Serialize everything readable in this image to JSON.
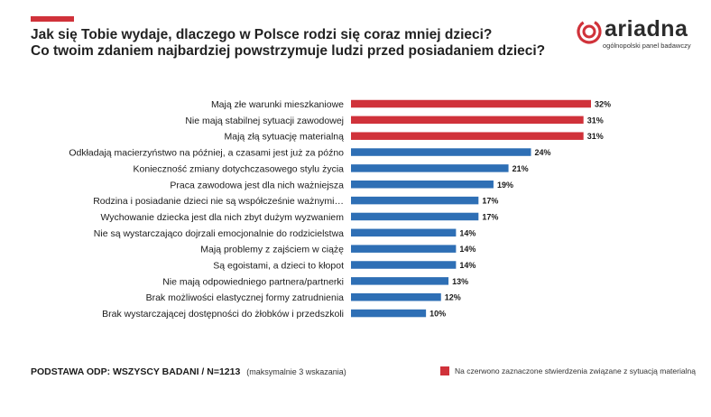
{
  "header": {
    "title_line1": "Jak się Tobie wydaje, dlaczego w Polsce rodzi się coraz mniej dzieci?",
    "title_line2": "Co twoim zdaniem najbardziej powstrzymuje ludzi przed posiadaniem dzieci?"
  },
  "logo": {
    "name": "ariadna",
    "tagline": "ogólnopolski panel badawczy"
  },
  "colors": {
    "accent": "#d0323a",
    "blue": "#2e6fb5",
    "text": "#1a1a1a"
  },
  "footer": {
    "base_label": "PODSTAWA ODP: WSZYSCY BADANI / N=1213",
    "note": "(maksymalnie 3 wskazania)"
  },
  "legend": {
    "label": "Na czerwono zaznaczone stwierdzenia związane z sytuacją materialną"
  },
  "chart_data": {
    "type": "bar",
    "orientation": "horizontal",
    "value_suffix": "%",
    "categories": [
      "Mają złe warunki mieszkaniowe",
      "Nie mają stabilnej sytuacji zawodowej",
      "Mają złą sytuację materialną",
      "Odkładają macierzyństwo na później, a czasami jest już za późno",
      "Konieczność zmiany dotychczasowego stylu życia",
      "Praca zawodowa jest dla nich ważniejsza",
      "Rodzina i posiadanie dzieci nie są współcześnie ważnymi…",
      "Wychowanie dziecka jest dla nich zbyt dużym wyzwaniem",
      "Nie są wystarczająco dojrzali emocjonalnie do rodzicielstwa",
      "Mają problemy z zajściem w ciążę",
      "Są egoistami, a dzieci to kłopot",
      "Nie mają odpowiedniego partnera/partnerki",
      "Brak możliwości elastycznej formy zatrudnienia",
      "Brak wystarczającej dostępności do żłobków i przedszkoli"
    ],
    "values": [
      32,
      31,
      31,
      24,
      21,
      19,
      17,
      17,
      14,
      14,
      14,
      13,
      12,
      10
    ],
    "highlight": [
      true,
      true,
      true,
      false,
      false,
      false,
      false,
      false,
      false,
      false,
      false,
      false,
      false,
      false
    ],
    "xlim": [
      0,
      32
    ]
  }
}
